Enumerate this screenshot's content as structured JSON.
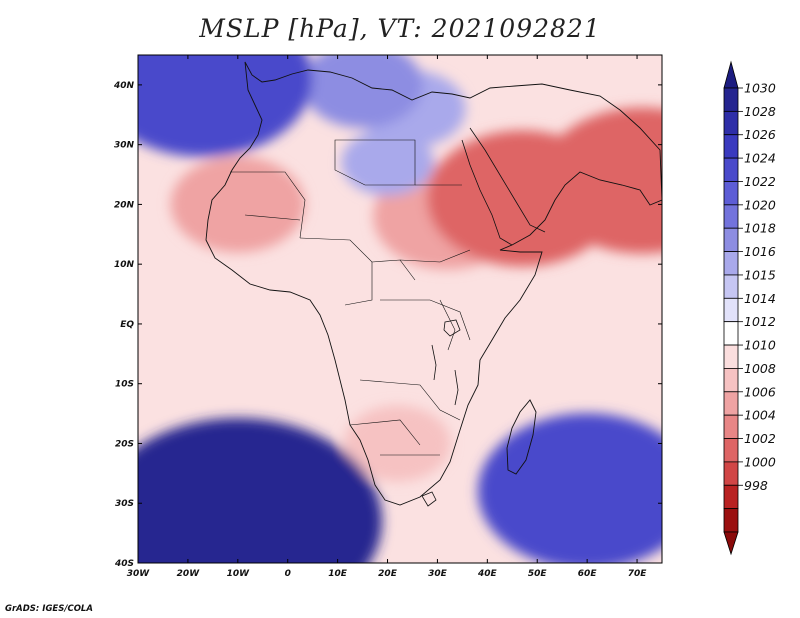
{
  "title": "MSLP [hPa], VT: 2021092821",
  "credit": "GrADS: IGES/COLA",
  "map": {
    "lon_range": [
      -30,
      75
    ],
    "lat_range": [
      -40,
      45
    ],
    "lon_ticks": [
      {
        "value": -30,
        "label": "30W"
      },
      {
        "value": -20,
        "label": "20W"
      },
      {
        "value": -10,
        "label": "10W"
      },
      {
        "value": 0,
        "label": "0"
      },
      {
        "value": 10,
        "label": "10E"
      },
      {
        "value": 20,
        "label": "20E"
      },
      {
        "value": 30,
        "label": "30E"
      },
      {
        "value": 40,
        "label": "40E"
      },
      {
        "value": 50,
        "label": "50E"
      },
      {
        "value": 60,
        "label": "60E"
      },
      {
        "value": 70,
        "label": "70E"
      }
    ],
    "lat_ticks": [
      {
        "value": 40,
        "label": "40N"
      },
      {
        "value": 30,
        "label": "30N"
      },
      {
        "value": 20,
        "label": "20N"
      },
      {
        "value": 10,
        "label": "10N"
      },
      {
        "value": 0,
        "label": "EQ"
      },
      {
        "value": -10,
        "label": "10S"
      },
      {
        "value": -20,
        "label": "20S"
      },
      {
        "value": -30,
        "label": "30S"
      },
      {
        "value": -40,
        "label": "40S"
      }
    ],
    "pressure_fields": [
      {
        "name": "north-atlantic-high",
        "lon": -17,
        "lat": 41,
        "hpa": 1025
      },
      {
        "name": "mediterranean-high",
        "lon": 15,
        "lat": 40,
        "hpa": 1018
      },
      {
        "name": "aegean-high",
        "lon": 25,
        "lat": 36,
        "hpa": 1017
      },
      {
        "name": "libya-ridge",
        "lon": 20,
        "lat": 27,
        "hpa": 1016
      },
      {
        "name": "south-atlantic-high",
        "lon": -10,
        "lat": -33,
        "hpa": 1030
      },
      {
        "name": "indian-ocean-high",
        "lon": 60,
        "lat": -28,
        "hpa": 1025
      },
      {
        "name": "arabian-low",
        "lon": 47,
        "lat": 21,
        "hpa": 1003
      },
      {
        "name": "indus-low",
        "lon": 71,
        "lat": 24,
        "hpa": 1002
      },
      {
        "name": "sahara-low",
        "lon": -10,
        "lat": 20,
        "hpa": 1007
      },
      {
        "name": "sudan-low",
        "lon": 32,
        "lat": 18,
        "hpa": 1006
      },
      {
        "name": "kalahari-low",
        "lon": 22,
        "lat": -20,
        "hpa": 1009
      }
    ]
  },
  "colorbar": {
    "levels": [
      "1030",
      "1028",
      "1026",
      "1024",
      "1022",
      "1020",
      "1018",
      "1016",
      "1015",
      "1014",
      "1012",
      "1010",
      "1008",
      "1006",
      "1004",
      "1002",
      "1000",
      "998"
    ],
    "colors": [
      "#252590",
      "#2e2ea8",
      "#3a3abf",
      "#4a4acb",
      "#5d5dd6",
      "#7373dc",
      "#8d8de2",
      "#a9a9eb",
      "#c6c6f3",
      "#e2e2fa",
      "#ffffff",
      "#fbdede",
      "#f6c2c2",
      "#efa3a3",
      "#e88686",
      "#de6565",
      "#d14646",
      "#b92222",
      "#9b1010"
    ],
    "end_colors": {
      "top": "#1c1c80",
      "bottom": "#8a0a0a"
    }
  }
}
